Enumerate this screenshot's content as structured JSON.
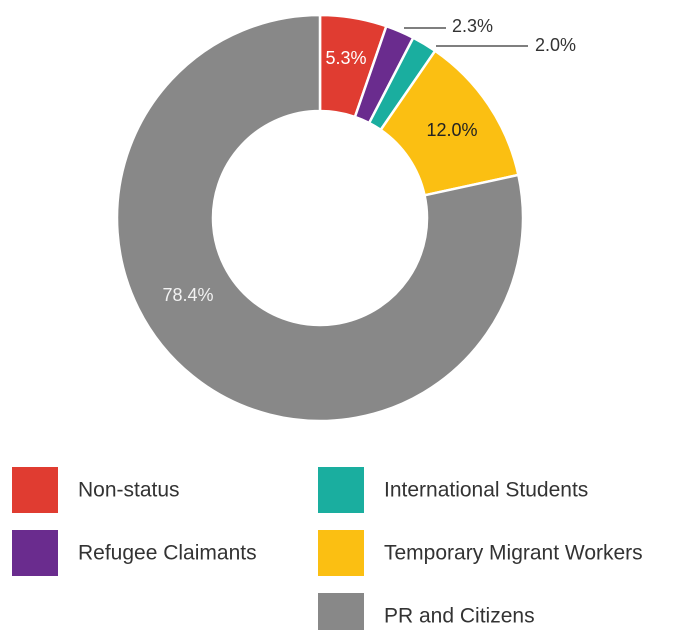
{
  "chart_data": {
    "type": "donut",
    "categories": [
      "Non-status",
      "Refugee Claimants",
      "International Students",
      "Temporary Migrant Workers",
      "PR and Citizens"
    ],
    "values": [
      5.3,
      2.3,
      2.0,
      12.0,
      78.4
    ],
    "value_labels": [
      "5.3%",
      "2.3%",
      "2.0%",
      "12.0%",
      "78.4%"
    ],
    "colors": [
      "#e03c31",
      "#6a2c8e",
      "#1aae9f",
      "#fbbf12",
      "#888888"
    ]
  }
}
